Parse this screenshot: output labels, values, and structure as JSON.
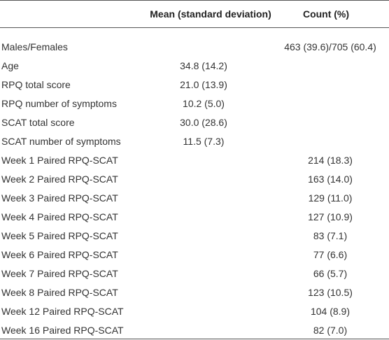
{
  "header": {
    "mean": "Mean (standard deviation)",
    "count": "Count (%)"
  },
  "rows": [
    {
      "label": "Males/Females",
      "count": "463 (39.6)/705 (60.4)"
    },
    {
      "label": "Age",
      "mean": "34.8 (14.2)"
    },
    {
      "label": "RPQ total score",
      "mean": "21.0 (13.9)"
    },
    {
      "label": "RPQ number of symptoms",
      "mean": "10.2 (5.0)"
    },
    {
      "label": "SCAT total score",
      "mean": "30.0 (28.6)"
    },
    {
      "label": "SCAT number of symptoms",
      "mean": "11.5 (7.3)"
    },
    {
      "label": "Week 1 Paired RPQ-SCAT",
      "count": "214 (18.3)"
    },
    {
      "label": "Week 2 Paired RPQ-SCAT",
      "count": "163 (14.0)"
    },
    {
      "label": "Week 3 Paired RPQ-SCAT",
      "count": "129 (11.0)"
    },
    {
      "label": "Week 4 Paired RPQ-SCAT",
      "count": "127 (10.9)"
    },
    {
      "label": "Week 5 Paired RPQ-SCAT",
      "count": "83 (7.1)"
    },
    {
      "label": "Week 6 Paired RPQ-SCAT",
      "count": "77 (6.6)"
    },
    {
      "label": "Week 7 Paired RPQ-SCAT",
      "count": "66 (5.7)"
    },
    {
      "label": "Week 8 Paired RPQ-SCAT",
      "count": "123 (10.5)"
    },
    {
      "label": "Week 12 Paired RPQ-SCAT",
      "count": "104 (8.9)"
    },
    {
      "label": "Week 16 Paired RPQ-SCAT",
      "count": "82 (7.0)"
    }
  ]
}
